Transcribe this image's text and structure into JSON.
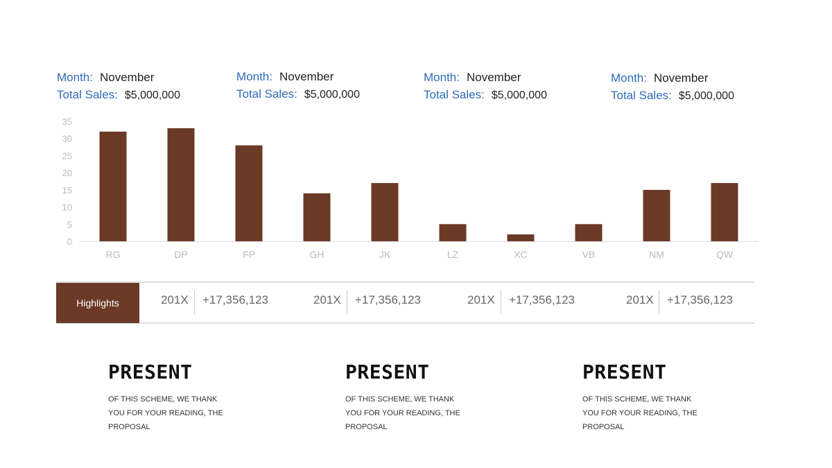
{
  "stats": [
    {
      "month_label": "Month:",
      "month": "November",
      "sales_label": "Total Sales:",
      "sales": "$5,000,000"
    },
    {
      "month_label": "Month:",
      "month": "November",
      "sales_label": "Total Sales:",
      "sales": "$5,000,000"
    },
    {
      "month_label": "Month:",
      "month": "November",
      "sales_label": "Total Sales:",
      "sales": "$5,000,000"
    },
    {
      "month_label": "Month:",
      "month": "November",
      "sales_label": "Total Sales:",
      "sales": "$5,000,000"
    }
  ],
  "chart_data": {
    "type": "bar",
    "categories": [
      "RG",
      "DP",
      "FP",
      "GH",
      "JK",
      "LZ",
      "XC",
      "VB",
      "NM",
      "QW"
    ],
    "values": [
      32,
      33,
      28,
      14,
      17,
      5,
      2,
      5,
      15,
      17
    ],
    "yticks": [
      "0",
      "5",
      "10",
      "15",
      "20",
      "25",
      "30",
      "35"
    ],
    "ylim": [
      0,
      35
    ],
    "grid": false,
    "legend": "none",
    "bar_color": "#6b3a26",
    "tick_color": "#bbbbbb"
  },
  "highlights": {
    "label": "Highlights",
    "items": [
      {
        "year": "201X",
        "value": "+17,356,123"
      },
      {
        "year": "201X",
        "value": "+17,356,123"
      },
      {
        "year": "201X",
        "value": "+17,356,123"
      },
      {
        "year": "201X",
        "value": "+17,356,123"
      }
    ]
  },
  "cards": [
    {
      "title": "PRESENT",
      "text": "OF THIS SCHEME, WE THANK YOU FOR YOUR READING, THE PROPOSAL"
    },
    {
      "title": "PRESENT",
      "text": "OF THIS SCHEME, WE THANK YOU FOR YOUR READING, THE PROPOSAL"
    },
    {
      "title": "PRESENT",
      "text": "OF THIS SCHEME, WE THANK YOU FOR YOUR READING, THE PROPOSAL"
    }
  ]
}
